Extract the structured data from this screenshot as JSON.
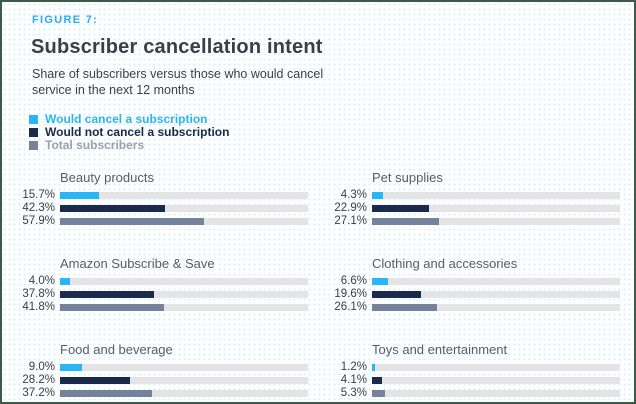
{
  "figure_label": "FIGURE 7:",
  "title": "Subscriber cancellation intent",
  "subtitle": "Share of subscribers versus those who would cancel service in the next 12 months",
  "colors": {
    "would_cancel": "#29b6f6",
    "would_not_cancel": "#1b2a4a",
    "total": "#74829c",
    "bar_track": "#e4e4e4",
    "figure_label_blue": "#2aaaf2",
    "frame_border_green": "#3c5a48"
  },
  "legend": [
    {
      "label": "Would cancel a subscription",
      "color_key": "would_cancel"
    },
    {
      "label": "Would not cancel a subscription",
      "color_key": "would_not_cancel"
    },
    {
      "label": "Total subscribers",
      "color_key": "total"
    }
  ],
  "chart_data": {
    "type": "bar",
    "orientation": "horizontal",
    "xlim": [
      0,
      100
    ],
    "value_unit": "%",
    "series": [
      "Would cancel a subscription",
      "Would not cancel a subscription",
      "Total subscribers"
    ],
    "series_color_keys": [
      "would_cancel",
      "would_not_cancel",
      "total"
    ],
    "groups": [
      {
        "category": "Beauty products",
        "values": [
          15.7,
          42.3,
          57.9
        ],
        "labels": [
          "15.7%",
          "42.3%",
          "57.9%"
        ]
      },
      {
        "category": "Pet supplies",
        "values": [
          4.3,
          22.9,
          27.1
        ],
        "labels": [
          "4.3%",
          "22.9%",
          "27.1%"
        ]
      },
      {
        "category": "Amazon Subscribe & Save",
        "values": [
          4.0,
          37.8,
          41.8
        ],
        "labels": [
          "4.0%",
          "37.8%",
          "41.8%"
        ]
      },
      {
        "category": "Clothing and accessories",
        "values": [
          6.6,
          19.6,
          26.1
        ],
        "labels": [
          "6.6%",
          "19.6%",
          "26.1%"
        ]
      },
      {
        "category": "Food and beverage",
        "values": [
          9.0,
          28.2,
          37.2
        ],
        "labels": [
          "9.0%",
          "28.2%",
          "37.2%"
        ]
      },
      {
        "category": "Toys and entertainment",
        "values": [
          1.2,
          4.1,
          5.3
        ],
        "labels": [
          "1.2%",
          "4.1%",
          "5.3%"
        ]
      }
    ]
  }
}
